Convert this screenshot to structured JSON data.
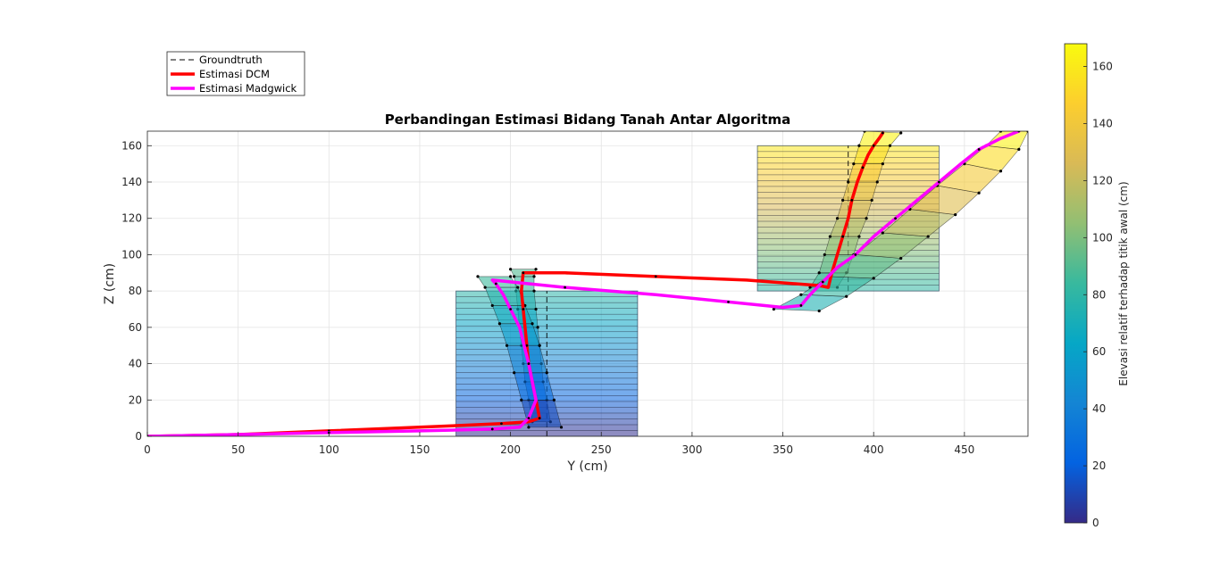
{
  "chart_data": {
    "type": "line",
    "title": "Perbandingan Estimasi Bidang Tanah Antar Algoritma",
    "xlabel": "Y (cm)",
    "ylabel": "Z (cm)",
    "xlim": [
      0,
      485
    ],
    "ylim": [
      0,
      168
    ],
    "xticks": [
      "0",
      "50",
      "100",
      "150",
      "200",
      "250",
      "300",
      "350",
      "400",
      "450"
    ],
    "yticks": [
      "0",
      "20",
      "40",
      "60",
      "80",
      "100",
      "120",
      "140",
      "160"
    ],
    "grid": true,
    "legend_position": "top-left",
    "legend": [
      {
        "label": "Groundtruth",
        "style": "dashed",
        "color": "#000000"
      },
      {
        "label": "Estimasi DCM",
        "style": "solid",
        "color": "#ff0000"
      },
      {
        "label": "Estimasi Madgwick",
        "style": "solid",
        "color": "#ff00ff"
      }
    ],
    "colorbar": {
      "label": "Elevasi relatif terhadap titik awal (cm)",
      "range": [
        0,
        168
      ],
      "ticks": [
        "0",
        "20",
        "40",
        "60",
        "80",
        "100",
        "120",
        "140",
        "160"
      ],
      "colormap": "parula"
    },
    "groundtruth_boxes": [
      {
        "y": [
          170,
          270
        ],
        "z": [
          0,
          80
        ]
      },
      {
        "y": [
          336,
          436
        ],
        "z": [
          80,
          160
        ]
      }
    ],
    "groundtruth_edges": [
      {
        "y": [
          220,
          220
        ],
        "z": [
          0,
          80
        ]
      },
      {
        "y": [
          386,
          386
        ],
        "z": [
          80,
          160
        ]
      }
    ],
    "series": [
      {
        "name": "Estimasi DCM",
        "color": "#ff0000",
        "center": {
          "y": [
            0,
            50,
            100,
            150,
            195,
            210,
            216,
            214,
            212,
            210,
            209,
            208,
            207,
            206,
            207,
            230,
            280,
            330,
            370,
            375,
            377,
            380,
            383,
            386,
            388,
            391,
            394,
            397,
            400,
            403,
            405
          ],
          "z": [
            0,
            1,
            3,
            5,
            7,
            8,
            10,
            20,
            30,
            40,
            50,
            60,
            70,
            80,
            90,
            90,
            88,
            86,
            83,
            82,
            90,
            100,
            110,
            120,
            130,
            140,
            148,
            155,
            160,
            164,
            167
          ]
        },
        "strips": [
          {
            "top": {
              "y": [
                212,
                210,
                208,
                207,
                206,
                205,
                204,
                203,
                202,
                200
              ],
              "z": [
                8,
                20,
                30,
                40,
                50,
                60,
                70,
                80,
                88,
                92
              ]
            },
            "bottom": {
              "y": [
                222,
                220,
                218,
                217,
                216,
                215,
                214,
                213,
                213,
                214
              ],
              "z": [
                8,
                20,
                30,
                40,
                50,
                60,
                70,
                80,
                88,
                92
              ]
            }
          },
          {
            "top": {
              "y": [
                365,
                370,
                373,
                376,
                380,
                383,
                386,
                389,
                392,
                395
              ],
              "z": [
                82,
                90,
                100,
                110,
                120,
                130,
                140,
                150,
                160,
                168
              ]
            },
            "bottom": {
              "y": [
                380,
                385,
                389,
                392,
                396,
                399,
                402,
                405,
                409,
                415
              ],
              "z": [
                82,
                90,
                100,
                110,
                120,
                130,
                140,
                150,
                160,
                167
              ]
            }
          }
        ]
      },
      {
        "name": "Estimasi Madgwick",
        "color": "#ff00ff",
        "center": {
          "y": [
            0,
            50,
            100,
            150,
            190,
            205,
            210,
            214,
            210,
            205,
            200,
            196,
            192,
            190,
            230,
            280,
            320,
            350,
            360,
            365,
            372,
            380,
            390,
            400,
            412,
            424,
            436,
            448,
            458,
            470,
            480
          ],
          "z": [
            0,
            1,
            2,
            3,
            4,
            5,
            10,
            20,
            40,
            60,
            70,
            78,
            84,
            86,
            82,
            78,
            74,
            71,
            72,
            78,
            85,
            93,
            100,
            110,
            120,
            130,
            140,
            150,
            158,
            164,
            168
          ]
        },
        "strips": [
          {
            "top": {
              "y": [
                210,
                206,
                202,
                198,
                194,
                190,
                186,
                182
              ],
              "z": [
                5,
                20,
                35,
                50,
                62,
                72,
                82,
                88
              ]
            },
            "bottom": {
              "y": [
                228,
                224,
                220,
                216,
                212,
                208,
                204,
                200
              ],
              "z": [
                5,
                20,
                35,
                50,
                62,
                72,
                82,
                88
              ]
            }
          },
          {
            "top": {
              "y": [
                345,
                360,
                375,
                390,
                405,
                420,
                435,
                450,
                462,
                470
              ],
              "z": [
                70,
                78,
                88,
                100,
                112,
                125,
                138,
                150,
                160,
                168
              ]
            },
            "bottom": {
              "y": [
                370,
                385,
                400,
                415,
                430,
                445,
                458,
                470,
                480,
                485
              ],
              "z": [
                69,
                77,
                87,
                98,
                110,
                122,
                134,
                146,
                158,
                168
              ]
            }
          }
        ]
      }
    ]
  }
}
